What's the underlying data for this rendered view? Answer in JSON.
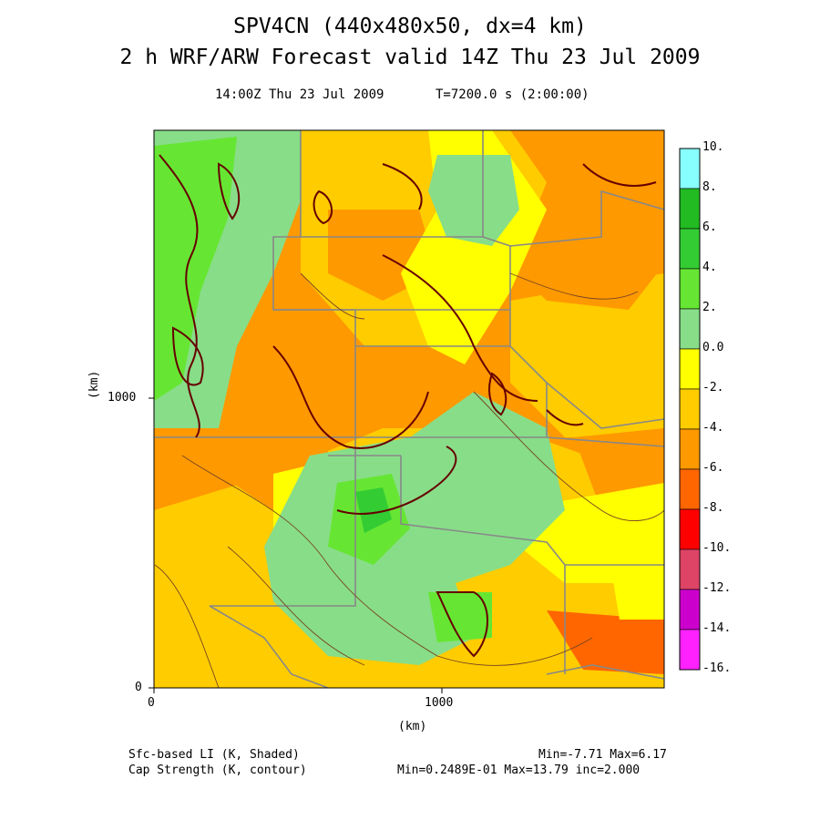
{
  "header": {
    "title_line1": "SPV4CN (440x480x50, dx=4 km)",
    "title_line2": "2 h WRF/ARW Forecast valid 14Z Thu 23 Jul 2009",
    "subtitle_time": "14:00Z Thu 23 Jul 2009",
    "subtitle_t": "T=7200.0 s (2:00:00)"
  },
  "axes": {
    "x_label": "(km)",
    "y_label": "(km)",
    "x_ticks": [
      "0",
      "1000"
    ],
    "y_ticks": [
      "0",
      "1000"
    ]
  },
  "colorbar": {
    "labels": [
      "10.",
      "8.",
      "6.",
      "4.",
      "2.",
      "0.0",
      "-2.",
      "-4.",
      "-6.",
      "-8.",
      "-10.",
      "-12.",
      "-14.",
      "-16."
    ],
    "colors": [
      "#88ffff",
      "#22bb22",
      "#33cc33",
      "#66e633",
      "#88dd88",
      "#ffff00",
      "#ffcc00",
      "#ff9900",
      "#ff6600",
      "#ff0000",
      "#dd4466",
      "#cc00cc",
      "#ff22ff"
    ]
  },
  "footer": {
    "field1": "Sfc-based LI (K, Shaded)",
    "field2": "Cap Strength (K, contour)",
    "stats1": "Min=-7.71 Max=6.17",
    "stats2": "Min=0.2489E-01 Max=13.79 inc=2.000"
  },
  "map_colors": {
    "boundary": "#888888",
    "contour_thick": "#660000",
    "contour_thin": "#774422"
  }
}
